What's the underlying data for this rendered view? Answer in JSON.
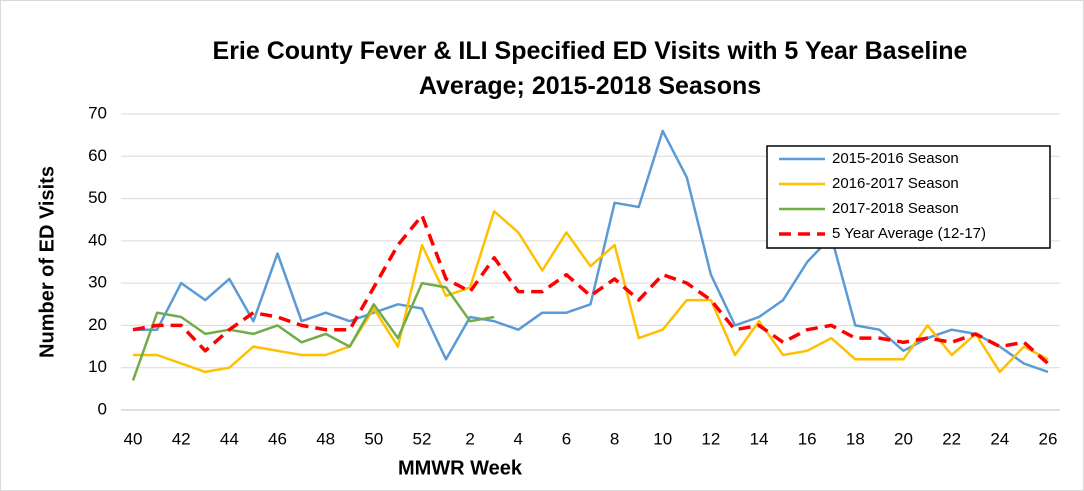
{
  "chart_data": {
    "type": "line",
    "title": "Erie County Fever & ILI Specified ED Visits with 5 Year Baseline Average; 2015-2018 Seasons",
    "xlabel": "MMWR Week",
    "ylabel": "Number of ED Visits",
    "categories": [
      "40",
      null,
      "42",
      null,
      "44",
      null,
      "46",
      null,
      "48",
      null,
      "50",
      null,
      "52",
      null,
      "2",
      null,
      "4",
      null,
      "6",
      null,
      "8",
      null,
      "10",
      null,
      "12",
      null,
      "14",
      null,
      "16",
      null,
      "18",
      null,
      "20",
      null,
      "22",
      null,
      "24",
      null,
      "26"
    ],
    "ylim": [
      0,
      70
    ],
    "yticks": [
      0,
      10,
      20,
      30,
      40,
      50,
      60,
      70
    ],
    "grid": true,
    "legend": "top-right",
    "series": [
      {
        "name": "2015-2016 Season",
        "color": "#5b9bd5",
        "dash": false,
        "values": [
          19,
          19,
          30,
          26,
          31,
          21,
          37,
          21,
          23,
          21,
          23,
          25,
          24,
          12,
          22,
          21,
          19,
          23,
          23,
          25,
          49,
          48,
          66,
          55,
          32,
          20,
          22,
          26,
          35,
          41,
          20,
          19,
          14,
          17,
          19,
          18,
          15,
          11,
          9
        ]
      },
      {
        "name": "2016-2017 Season",
        "color": "#ffc000",
        "dash": false,
        "values": [
          13,
          13,
          11,
          9,
          10,
          15,
          14,
          13,
          13,
          15,
          24,
          15,
          39,
          27,
          29,
          47,
          42,
          33,
          42,
          34,
          39,
          17,
          19,
          26,
          26,
          13,
          21,
          13,
          14,
          17,
          12,
          12,
          12,
          20,
          13,
          18,
          9,
          15,
          12
        ]
      },
      {
        "name": "2017-2018 Season",
        "color": "#70ad47",
        "dash": false,
        "values": [
          7,
          23,
          22,
          18,
          19,
          18,
          20,
          16,
          18,
          15,
          25,
          17,
          30,
          29,
          21,
          22,
          null,
          null,
          null,
          null,
          null,
          null,
          null,
          null,
          null,
          null,
          null,
          null,
          null,
          null,
          null,
          null,
          null,
          null,
          null,
          null,
          null,
          null,
          null
        ]
      },
      {
        "name": "5 Year Average (12-17)",
        "color": "#ff0000",
        "dash": true,
        "values": [
          19,
          20,
          20,
          14,
          19,
          23,
          22,
          20,
          19,
          19,
          29,
          39,
          46,
          31,
          28,
          36,
          28,
          28,
          32,
          27,
          31,
          26,
          32,
          30,
          26,
          19,
          20,
          16,
          19,
          20,
          17,
          17,
          16,
          17,
          16,
          18,
          15,
          16,
          11
        ]
      }
    ]
  }
}
